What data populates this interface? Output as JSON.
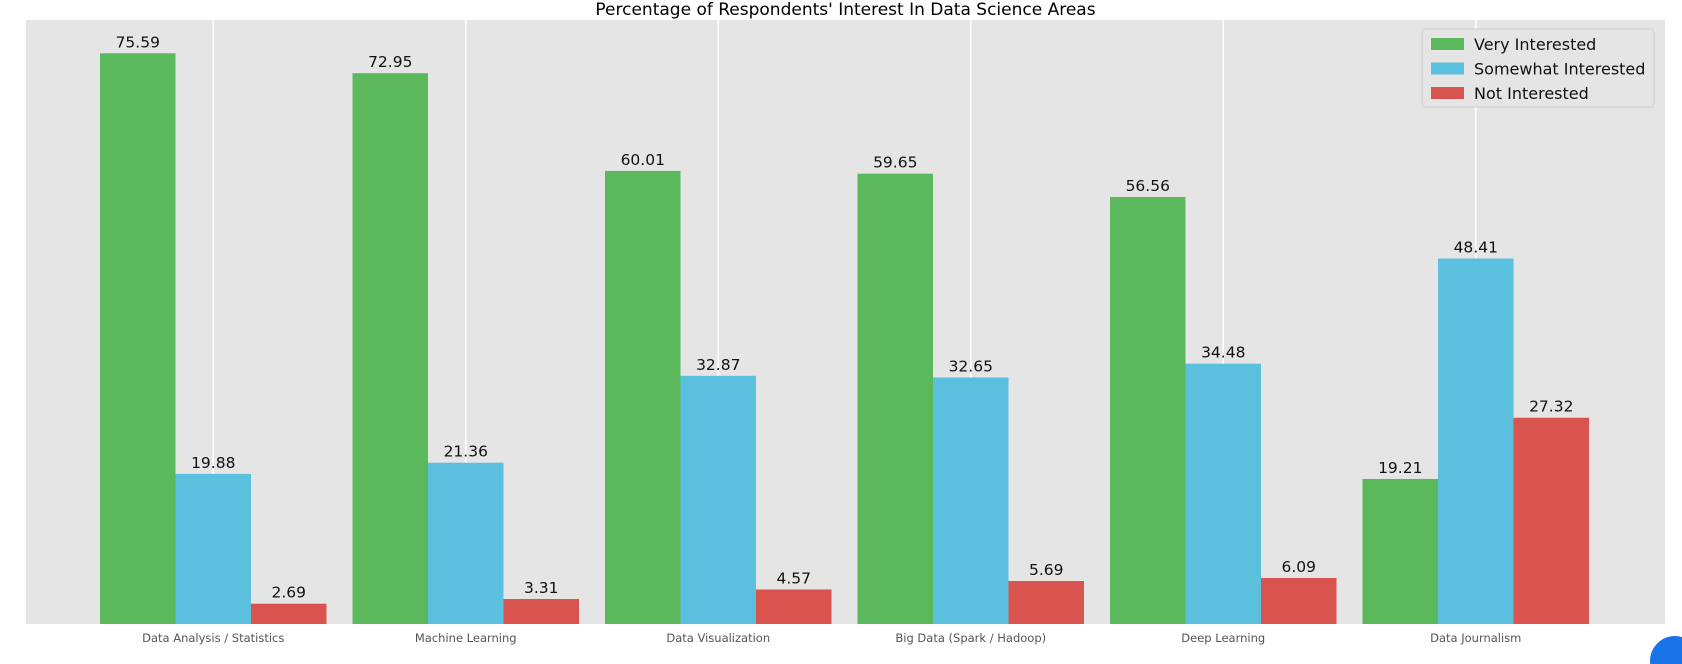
{
  "chart_data": {
    "type": "bar",
    "title": "Percentage of Respondents' Interest In Data Science Areas",
    "xlabel": "",
    "ylabel": "",
    "ylim": [
      0,
      80
    ],
    "grid": true,
    "legend_position": "top-right",
    "categories": [
      "Data Analysis / Statistics",
      "Machine Learning",
      "Data Visualization",
      "Big Data (Spark / Hadoop)",
      "Deep Learning",
      "Data Journalism"
    ],
    "series": [
      {
        "name": "Very Interested",
        "color": "#5cb85c",
        "values": [
          75.59,
          72.95,
          60.01,
          59.65,
          56.56,
          19.21
        ],
        "labels": [
          "75.59",
          "72.95",
          "60.01",
          "59.65",
          "56.56",
          "19.21"
        ]
      },
      {
        "name": "Somewhat Interested",
        "color": "#5bc0de",
        "values": [
          19.88,
          21.36,
          32.87,
          32.65,
          34.48,
          48.41
        ],
        "labels": [
          "19.88",
          "21.36",
          "32.87",
          "32.65",
          "34.48",
          "48.41"
        ]
      },
      {
        "name": "Not Interested",
        "color": "#d9534f",
        "values": [
          2.69,
          3.31,
          4.57,
          5.69,
          6.09,
          27.32
        ],
        "labels": [
          "2.69",
          "3.31",
          "4.57",
          "5.69",
          "6.09",
          "27.32"
        ]
      }
    ],
    "background_color": "#e5e5e5",
    "grid_color": "#ffffff"
  },
  "ui": {
    "corner_button_icon": "circle-button-icon"
  }
}
